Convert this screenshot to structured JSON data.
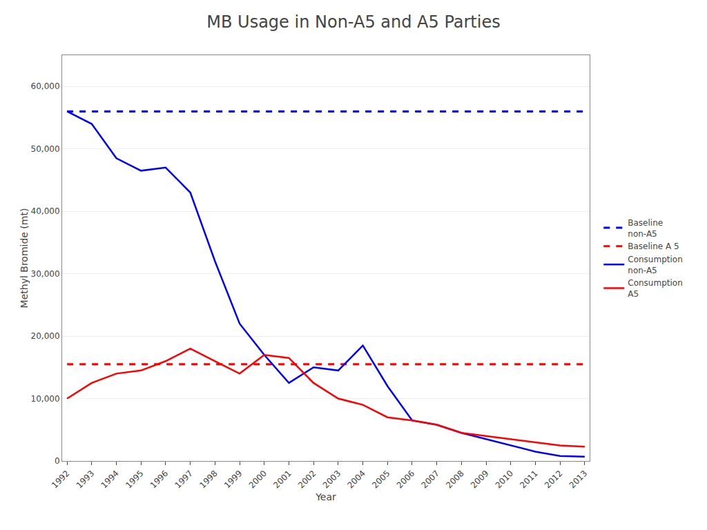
{
  "chart_data": {
    "type": "line",
    "title": "MB Usage in Non-A5 and A5 Parties",
    "xlabel": "Year",
    "ylabel": "Methyl Bromide (mt)",
    "x": [
      1992,
      1993,
      1994,
      1995,
      1996,
      1997,
      1998,
      1999,
      2000,
      2001,
      2002,
      2003,
      2004,
      2005,
      2006,
      2007,
      2008,
      2009,
      2010,
      2011,
      2012,
      2013
    ],
    "series": [
      {
        "name": "Baseline\nnon-A5",
        "color": "#0000FF",
        "line_style": "dashed",
        "x": [
          1992,
          2013
        ],
        "values": [
          56000,
          56000
        ]
      },
      {
        "name": "Baseline A 5",
        "color": "#FF0000",
        "line_style": "dashed",
        "x": [
          1992,
          2013
        ],
        "values": [
          15500,
          15500
        ]
      },
      {
        "name": "Consumption\nnon-A5",
        "color": "#0000FF",
        "line_style": "solid",
        "values": [
          56000,
          54000,
          48500,
          46500,
          47000,
          43000,
          32000,
          22000,
          17000,
          12500,
          15000,
          14500,
          18500,
          12000,
          6500,
          5800,
          4500,
          3500,
          2500,
          1500,
          800,
          700
        ]
      },
      {
        "name": "Consumption\nA5",
        "color": "#FF0000",
        "line_style": "solid",
        "values": [
          10000,
          12500,
          14000,
          14500,
          16000,
          18000,
          16000,
          14000,
          17000,
          16500,
          12500,
          10000,
          9000,
          7000,
          6500,
          5800,
          4500,
          4000,
          3500,
          3000,
          2500,
          2300
        ]
      }
    ],
    "xlim": [
      1991.8,
      2013.2
    ],
    "xticks": [
      1992,
      1993,
      1994,
      1995,
      1996,
      1997,
      1998,
      1999,
      2000,
      2001,
      2002,
      2003,
      2004,
      2005,
      2006,
      2007,
      2008,
      2009,
      2010,
      2011,
      2012,
      2013
    ],
    "ylim": [
      0,
      65000
    ],
    "yticks": [
      0,
      {
        "value": 10000,
        "label": "10,000"
      },
      {
        "value": 20000,
        "label": "20,000"
      },
      {
        "value": 30000,
        "label": "30,000"
      },
      {
        "value": 40000,
        "label": "40,000"
      },
      {
        "value": 50000,
        "label": "50,000"
      },
      {
        "value": 60000,
        "label": "60,000"
      }
    ],
    "grid": true,
    "legend": "right"
  }
}
